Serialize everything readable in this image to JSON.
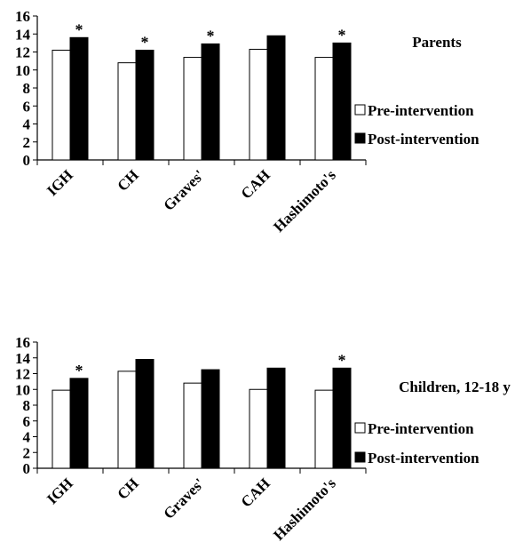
{
  "chart_data": [
    {
      "type": "bar",
      "title": "Parents",
      "categories": [
        "IGH",
        "CH",
        "Graves'",
        "CAH",
        "Hashimoto's"
      ],
      "series": [
        {
          "name": "Pre-intervention",
          "values": [
            12.2,
            10.8,
            11.4,
            12.3,
            11.4
          ],
          "color": "#ffffff"
        },
        {
          "name": "Post-intervention",
          "values": [
            13.6,
            12.2,
            12.9,
            13.8,
            13.0
          ],
          "color": "#000000"
        }
      ],
      "significance": [
        "*",
        "*",
        "*",
        "",
        "*"
      ],
      "ylim": [
        0,
        16
      ],
      "yticks": [
        "0",
        "2",
        "4",
        "6",
        "8",
        "10",
        "12",
        "14",
        "16"
      ],
      "xlabel": "",
      "ylabel": "",
      "grid": false,
      "legend_position": "right"
    },
    {
      "type": "bar",
      "title": "Children, 12-18 y",
      "categories": [
        "IGH",
        "CH",
        "Graves'",
        "CAH",
        "Hashimoto's"
      ],
      "series": [
        {
          "name": "Pre-intervention",
          "values": [
            9.9,
            12.3,
            10.8,
            10.0,
            9.9
          ],
          "color": "#ffffff"
        },
        {
          "name": "Post-intervention",
          "values": [
            11.4,
            13.8,
            12.5,
            12.7,
            12.7
          ],
          "color": "#000000"
        }
      ],
      "significance": [
        "*",
        "",
        "",
        "",
        "*"
      ],
      "ylim": [
        0,
        16
      ],
      "yticks": [
        "0",
        "2",
        "4",
        "6",
        "8",
        "10",
        "12",
        "14",
        "16"
      ],
      "xlabel": "",
      "ylabel": "",
      "grid": false,
      "legend_position": "right"
    }
  ]
}
